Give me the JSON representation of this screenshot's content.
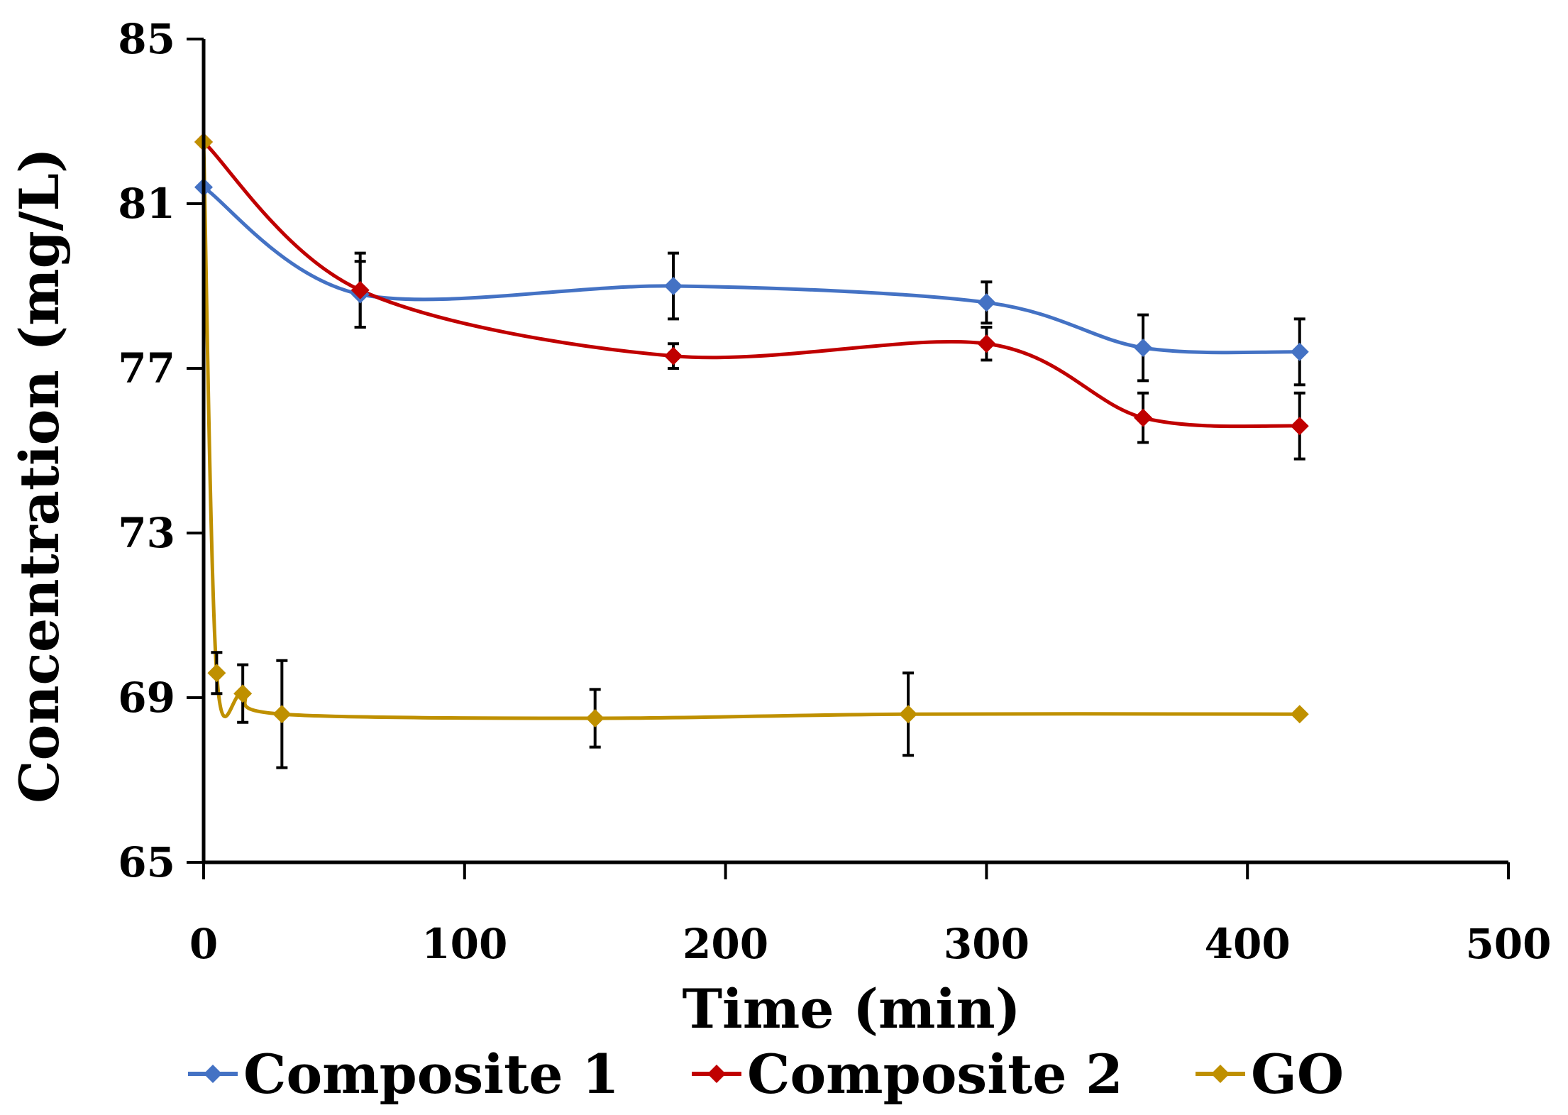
{
  "chart_data": {
    "type": "line",
    "title": "",
    "xlabel": "Time (min)",
    "ylabel": "Concentration (mg/L)",
    "xlim": [
      0,
      500
    ],
    "ylim": [
      65,
      85
    ],
    "xticks": [
      "0",
      "100",
      "200",
      "300",
      "400",
      "500"
    ],
    "yticks": [
      "65",
      "69",
      "73",
      "77",
      "81",
      "85"
    ],
    "grid": false,
    "legend_position": "bottom",
    "series": [
      {
        "name": "Composite 1",
        "color": "#4472C4",
        "x": [
          0,
          60,
          180,
          300,
          360,
          420
        ],
        "y": [
          81.4,
          78.8,
          79.0,
          78.6,
          77.5,
          77.4
        ],
        "error": [
          0,
          0.8,
          0.8,
          0.5,
          0.8,
          0.8
        ]
      },
      {
        "name": "Composite 2",
        "color": "#C00000",
        "x": [
          0,
          60,
          180,
          300,
          360,
          420
        ],
        "y": [
          82.5,
          78.9,
          77.3,
          77.6,
          75.8,
          75.6
        ],
        "error": [
          0,
          0.9,
          0.3,
          0.4,
          0.6,
          0.8
        ]
      },
      {
        "name": "GO",
        "color": "#BF9000",
        "x": [
          0,
          5,
          15,
          30,
          150,
          270,
          420
        ],
        "y": [
          82.5,
          69.6,
          69.1,
          68.6,
          68.5,
          68.6,
          68.6
        ],
        "error": [
          0,
          0.5,
          0.7,
          1.3,
          0.7,
          1.0,
          0
        ]
      }
    ]
  }
}
